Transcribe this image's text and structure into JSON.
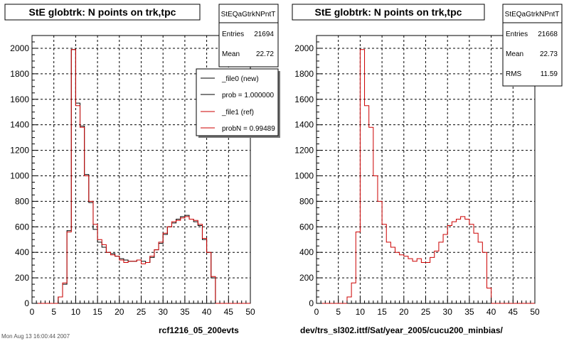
{
  "colors": {
    "new_series": "#000000",
    "ref_series": "#cc0000",
    "background": "#ffffff"
  },
  "left_panel": {
    "title": "StE globtrk: N points on trk,tpc",
    "caption": "rcf1216_05_200evts",
    "stats": {
      "name": "StEQaGtrkNPntT",
      "entries_label": "Entries",
      "entries": "21694",
      "mean_label": "Mean",
      "mean": "22.72"
    },
    "legend": [
      {
        "label": "_file0 (new)",
        "color": "#000000"
      },
      {
        "label": "prob = 1.000000",
        "color": "#000000"
      },
      {
        "label": "_file1 (ref)",
        "color": "#cc0000"
      },
      {
        "label": "probN = 0.99489",
        "color": "#cc0000"
      }
    ]
  },
  "right_panel": {
    "title": "StE globtrk: N points on trk,tpc",
    "caption": "dev/trs_sl302.ittf/Sat/year_2005/cucu200_minbias/",
    "stats": {
      "name": "StEQaGtrkNPntT",
      "entries_label": "Entries",
      "entries": "21668",
      "mean_label": "Mean",
      "mean": "22.73",
      "rms_label": "RMS",
      "rms": "11.59"
    }
  },
  "bottom_left_text": "Mon Aug 13 16:00:44 2007",
  "chart_data": [
    {
      "type": "histogram",
      "title": "StE globtrk: N points on trk,tpc",
      "bin_width": 1,
      "bin_start": 0,
      "xlim": [
        0,
        50
      ],
      "ylim": [
        0,
        2100
      ],
      "x_ticks": [
        0,
        5,
        10,
        15,
        20,
        25,
        30,
        35,
        40,
        45,
        50
      ],
      "y_ticks": [
        0,
        200,
        400,
        600,
        800,
        1000,
        1200,
        1400,
        1600,
        1800,
        2000
      ],
      "grid": true,
      "legend_position": "top-right",
      "series": [
        {
          "name": "_file0 (new)",
          "color": "#000000",
          "values": [
            0,
            0,
            0,
            0,
            0,
            0,
            50,
            150,
            570,
            1990,
            1570,
            1390,
            1010,
            790,
            580,
            480,
            440,
            400,
            390,
            370,
            350,
            340,
            330,
            330,
            340,
            330,
            320,
            360,
            420,
            470,
            540,
            600,
            630,
            660,
            680,
            690,
            660,
            640,
            610,
            500,
            400,
            200,
            0,
            0,
            0,
            0,
            0,
            0,
            0,
            0
          ]
        },
        {
          "name": "_file1 (ref)",
          "color": "#cc0000",
          "values": [
            0,
            0,
            0,
            0,
            0,
            0,
            50,
            160,
            560,
            1990,
            1550,
            1380,
            1000,
            800,
            620,
            500,
            460,
            400,
            380,
            370,
            340,
            320,
            330,
            330,
            340,
            310,
            320,
            370,
            420,
            480,
            550,
            600,
            640,
            650,
            670,
            680,
            660,
            650,
            620,
            510,
            400,
            210,
            0,
            0,
            0,
            0,
            0,
            0,
            0,
            0
          ]
        }
      ]
    },
    {
      "type": "histogram",
      "title": "StE globtrk: N points on trk,tpc",
      "bin_width": 1,
      "bin_start": 0,
      "xlim": [
        0,
        50
      ],
      "ylim": [
        0,
        2100
      ],
      "x_ticks": [
        0,
        5,
        10,
        15,
        20,
        25,
        30,
        35,
        40,
        45,
        50
      ],
      "y_ticks": [
        0,
        200,
        400,
        600,
        800,
        1000,
        1200,
        1400,
        1600,
        1800,
        2000
      ],
      "grid": true,
      "series": [
        {
          "name": "",
          "color": "#cc0000",
          "values": [
            0,
            0,
            0,
            0,
            0,
            0,
            0,
            50,
            160,
            560,
            1990,
            1550,
            1380,
            1000,
            800,
            620,
            480,
            440,
            400,
            380,
            370,
            350,
            330,
            350,
            320,
            320,
            360,
            410,
            480,
            540,
            610,
            640,
            660,
            680,
            660,
            620,
            550,
            480,
            400,
            120,
            0,
            0,
            0,
            0,
            0,
            0,
            0,
            0,
            0,
            0
          ]
        }
      ]
    }
  ]
}
